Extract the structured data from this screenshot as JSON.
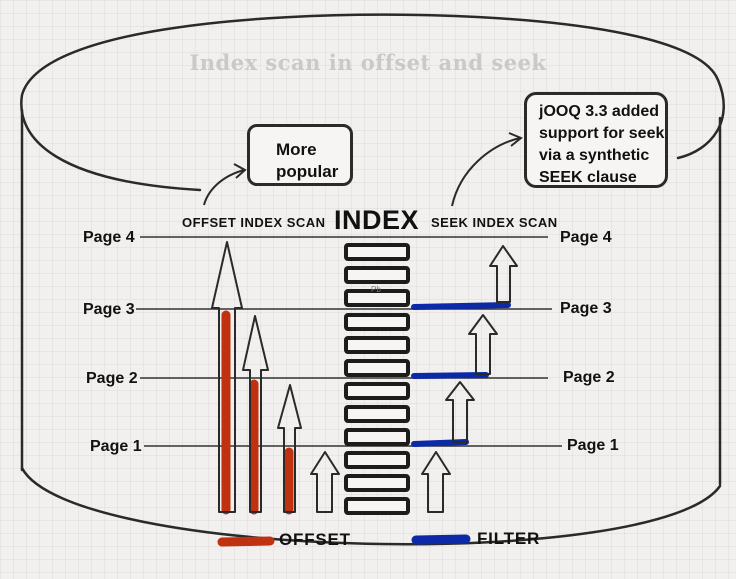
{
  "title": "Index scan in offset and seek",
  "callout_popular": {
    "line1": "More",
    "line2": "popular"
  },
  "callout_jooq": {
    "line1": "jOOQ 3.3 added",
    "line2": "support for seek",
    "line3": "via a synthetic",
    "line4": "SEEK clause"
  },
  "offset_scan_label": "OFFSET INDEX SCAN",
  "index_label": "INDEX",
  "seek_scan_label": "SEEK INDEX SCAN",
  "index_cell_text": "Pb",
  "pages_left": [
    "Page 4",
    "Page 3",
    "Page 2",
    "Page 1"
  ],
  "pages_right": [
    "Page 4",
    "Page 3",
    "Page 2",
    "Page 1"
  ],
  "legend": {
    "offset": "OFFSET",
    "filter": "FILTER"
  },
  "colors": {
    "offset": "#c0320f",
    "filter": "#0c2aa8",
    "ink": "#222222",
    "title": "#c9c9c9"
  }
}
